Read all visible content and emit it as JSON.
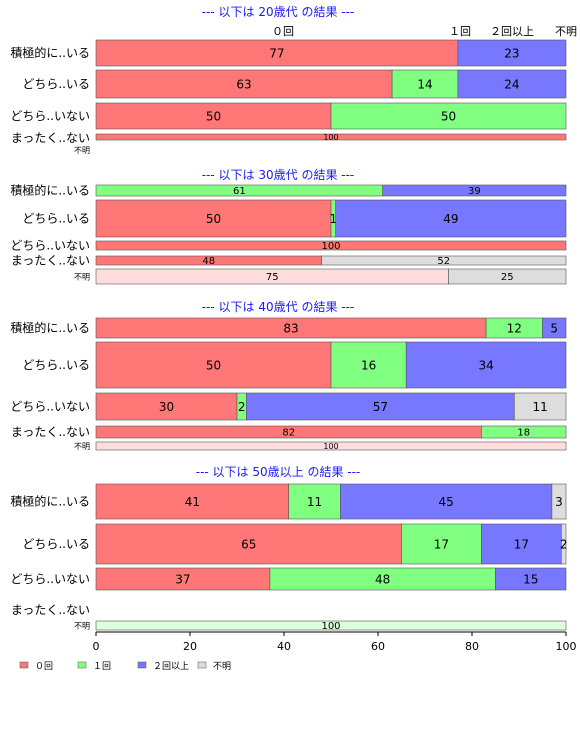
{
  "chart_data": {
    "type": "bar",
    "orientation": "horizontal",
    "stacked": "percent",
    "xlim": [
      0,
      100
    ],
    "x_ticks": [
      "0",
      "20",
      "40",
      "60",
      "80",
      "100"
    ],
    "series": [
      {
        "name": "０回",
        "color": "#ff7777"
      },
      {
        "name": "１回",
        "color": "#80ff80"
      },
      {
        "name": "２回以上",
        "color": "#7777ff"
      },
      {
        "name": "不明",
        "color": "#dddddd"
      }
    ],
    "top_labels": [
      "０回",
      "１回",
      "２回以上",
      "不明"
    ],
    "groups": [
      {
        "title": "--- 以下は 20歳代 の結果 ---",
        "rows": [
          {
            "label": "積極的に..いる",
            "values": [
              77,
              0,
              23,
              0
            ],
            "labels": [
              "77",
              "",
              "23",
              ""
            ]
          },
          {
            "label": "どちら..いる",
            "values": [
              63,
              14,
              24,
              0
            ],
            "labels": [
              "63",
              "14",
              "24",
              ""
            ]
          },
          {
            "label": "どちら..いない",
            "values": [
              50,
              50,
              0,
              0
            ],
            "labels": [
              "50",
              "50",
              "",
              ""
            ]
          },
          {
            "label": "まったく..ない",
            "values": [
              100,
              0,
              0,
              0
            ],
            "labels": [
              "100",
              "",
              "",
              ""
            ]
          },
          {
            "label": "不明",
            "values": [],
            "labels": []
          }
        ]
      },
      {
        "title": "--- 以下は 30歳代 の結果 ---",
        "rows": [
          {
            "label": "積極的に..いる",
            "values": [
              0,
              61,
              39,
              0
            ],
            "labels": [
              "",
              "61",
              "39",
              ""
            ]
          },
          {
            "label": "どちら..いる",
            "values": [
              50,
              1,
              49,
              0
            ],
            "labels": [
              "50",
              "1",
              "49",
              ""
            ]
          },
          {
            "label": "どちら..いない",
            "values": [
              100,
              0,
              0,
              0
            ],
            "labels": [
              "100",
              "",
              "",
              ""
            ]
          },
          {
            "label": "まったく..ない",
            "values": [
              48,
              0,
              0,
              52
            ],
            "labels": [
              "48",
              "",
              "",
              "52"
            ]
          },
          {
            "label": "不明",
            "values": [
              75,
              0,
              0,
              25
            ],
            "labels": [
              "75",
              "",
              "",
              "25"
            ]
          }
        ]
      },
      {
        "title": "--- 以下は 40歳代 の結果 ---",
        "rows": [
          {
            "label": "積極的に..いる",
            "values": [
              83,
              12,
              5,
              0
            ],
            "labels": [
              "83",
              "12",
              "5",
              ""
            ]
          },
          {
            "label": "どちら..いる",
            "values": [
              50,
              16,
              34,
              0
            ],
            "labels": [
              "50",
              "16",
              "34",
              ""
            ]
          },
          {
            "label": "どちら..いない",
            "values": [
              30,
              2,
              57,
              11
            ],
            "labels": [
              "30",
              "2",
              "57",
              "11"
            ]
          },
          {
            "label": "まったく..ない",
            "values": [
              82,
              18,
              0,
              0
            ],
            "labels": [
              "82",
              "18",
              "",
              ""
            ]
          },
          {
            "label": "不明",
            "values": [
              100,
              0,
              0,
              0
            ],
            "labels": [
              "100",
              "",
              "",
              ""
            ]
          }
        ]
      },
      {
        "title": "--- 以下は 50歳以上 の結果 ---",
        "rows": [
          {
            "label": "積極的に..いる",
            "values": [
              41,
              11,
              45,
              3
            ],
            "labels": [
              "41",
              "11",
              "45",
              "3"
            ]
          },
          {
            "label": "どちら..いる",
            "values": [
              65,
              17,
              17,
              2
            ],
            "labels": [
              "65",
              "17",
              "17",
              "2"
            ]
          },
          {
            "label": "どちら..いない",
            "values": [
              37,
              48,
              15,
              0
            ],
            "labels": [
              "37",
              "48",
              "15",
              ""
            ]
          },
          {
            "label": "まったく..ない",
            "values": [],
            "labels": []
          },
          {
            "label": "不明",
            "values": [
              0,
              100,
              0,
              0
            ],
            "labels": [
              "",
              "100",
              "",
              ""
            ]
          }
        ]
      }
    ],
    "legend": {
      "position": "bottom-left",
      "entries": [
        "０回",
        "１回",
        "２回以上",
        "不明"
      ]
    }
  }
}
